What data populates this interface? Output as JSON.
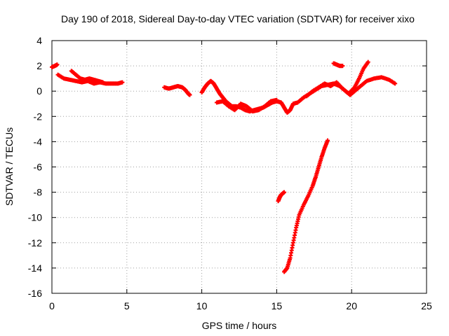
{
  "chart_data": {
    "type": "scatter",
    "title": "Day 190 of 2018, Sidereal Day-to-day VTEC variation (SDTVAR) for receiver xixo",
    "xlabel": "GPS time / hours",
    "ylabel": "SDTVAR / TECUs",
    "xlim": [
      0,
      25
    ],
    "ylim": [
      -16,
      4
    ],
    "xticks": [
      0,
      5,
      10,
      15,
      20,
      25
    ],
    "yticks": [
      4,
      2,
      0,
      -2,
      -4,
      -6,
      -8,
      -10,
      -12,
      -14,
      -16
    ],
    "grid": true,
    "legend": "none",
    "series": [
      {
        "color": "#ff0000",
        "marker": "+",
        "segments": [
          [
            [
              0.0,
              1.9
            ],
            [
              0.2,
              2.0
            ],
            [
              0.35,
              2.1
            ]
          ],
          [
            [
              0.4,
              1.3
            ],
            [
              0.8,
              1.0
            ],
            [
              1.2,
              0.9
            ],
            [
              1.6,
              0.8
            ],
            [
              2.0,
              0.7
            ],
            [
              2.4,
              0.8
            ],
            [
              2.8,
              0.6
            ],
            [
              3.2,
              0.7
            ],
            [
              3.6,
              0.6
            ],
            [
              4.0,
              0.6
            ],
            [
              4.4,
              0.6
            ],
            [
              4.7,
              0.7
            ]
          ],
          [
            [
              1.3,
              1.6
            ],
            [
              1.6,
              1.3
            ],
            [
              1.9,
              1.0
            ],
            [
              2.2,
              0.9
            ],
            [
              2.5,
              1.0
            ],
            [
              2.8,
              0.9
            ],
            [
              3.1,
              0.8
            ],
            [
              3.4,
              0.7
            ]
          ],
          [
            [
              7.5,
              0.3
            ],
            [
              7.8,
              0.2
            ],
            [
              8.1,
              0.3
            ],
            [
              8.4,
              0.4
            ],
            [
              8.7,
              0.3
            ],
            [
              8.9,
              0.1
            ],
            [
              9.1,
              -0.2
            ],
            [
              9.2,
              -0.3
            ]
          ],
          [
            [
              10.0,
              -0.1
            ],
            [
              10.2,
              0.3
            ],
            [
              10.4,
              0.6
            ],
            [
              10.6,
              0.8
            ],
            [
              10.8,
              0.6
            ],
            [
              11.0,
              0.2
            ],
            [
              11.2,
              -0.2
            ],
            [
              11.4,
              -0.5
            ],
            [
              11.6,
              -0.8
            ],
            [
              11.8,
              -1.0
            ],
            [
              12.0,
              -1.2
            ],
            [
              12.3,
              -1.2
            ],
            [
              12.6,
              -1.3
            ],
            [
              12.9,
              -1.5
            ],
            [
              13.2,
              -1.6
            ],
            [
              13.5,
              -1.5
            ],
            [
              13.8,
              -1.4
            ],
            [
              14.1,
              -1.3
            ],
            [
              14.4,
              -1.1
            ],
            [
              14.7,
              -0.9
            ],
            [
              15.0,
              -0.8
            ],
            [
              15.3,
              -0.9
            ],
            [
              15.5,
              -1.3
            ],
            [
              15.7,
              -1.7
            ],
            [
              15.9,
              -1.5
            ],
            [
              16.1,
              -1.0
            ],
            [
              16.4,
              -0.9
            ],
            [
              16.8,
              -0.5
            ],
            [
              17.2,
              -0.2
            ],
            [
              17.6,
              0.1
            ],
            [
              18.0,
              0.4
            ],
            [
              18.4,
              0.5
            ],
            [
              18.8,
              0.6
            ],
            [
              19.2,
              0.4
            ],
            [
              19.6,
              0.0
            ],
            [
              19.9,
              -0.3
            ],
            [
              20.2,
              0.0
            ],
            [
              20.6,
              0.4
            ],
            [
              21.0,
              0.8
            ],
            [
              21.5,
              1.0
            ],
            [
              22.0,
              1.1
            ],
            [
              22.5,
              0.9
            ],
            [
              22.9,
              0.6
            ]
          ],
          [
            [
              11.0,
              -0.9
            ],
            [
              11.4,
              -0.8
            ],
            [
              11.8,
              -1.2
            ],
            [
              12.2,
              -1.5
            ],
            [
              12.6,
              -1.0
            ],
            [
              13.0,
              -1.2
            ],
            [
              13.4,
              -1.6
            ],
            [
              13.8,
              -1.5
            ],
            [
              14.2,
              -1.2
            ],
            [
              14.6,
              -0.8
            ],
            [
              15.0,
              -0.7
            ]
          ],
          [
            [
              17.0,
              -0.4
            ],
            [
              17.4,
              0.0
            ],
            [
              17.8,
              0.3
            ],
            [
              18.2,
              0.6
            ],
            [
              18.6,
              0.4
            ],
            [
              19.0,
              0.7
            ],
            [
              19.4,
              0.2
            ],
            [
              19.8,
              -0.2
            ],
            [
              20.2,
              0.3
            ],
            [
              20.5,
              1.0
            ],
            [
              20.8,
              1.8
            ],
            [
              21.1,
              2.3
            ]
          ],
          [
            [
              18.8,
              2.2
            ],
            [
              19.0,
              2.1
            ],
            [
              19.2,
              2.0
            ],
            [
              19.4,
              2.0
            ]
          ],
          [
            [
              15.1,
              -8.7
            ],
            [
              15.2,
              -8.4
            ],
            [
              15.3,
              -8.2
            ],
            [
              15.5,
              -8.0
            ]
          ],
          [
            [
              15.5,
              -14.3
            ],
            [
              15.7,
              -14.0
            ],
            [
              15.9,
              -13.2
            ],
            [
              16.1,
              -12.0
            ],
            [
              16.3,
              -10.8
            ],
            [
              16.5,
              -9.8
            ],
            [
              16.8,
              -9.0
            ],
            [
              17.1,
              -8.3
            ],
            [
              17.4,
              -7.5
            ],
            [
              17.6,
              -6.8
            ],
            [
              17.8,
              -6.0
            ],
            [
              18.0,
              -5.2
            ],
            [
              18.2,
              -4.5
            ],
            [
              18.4,
              -3.9
            ]
          ]
        ]
      }
    ]
  }
}
